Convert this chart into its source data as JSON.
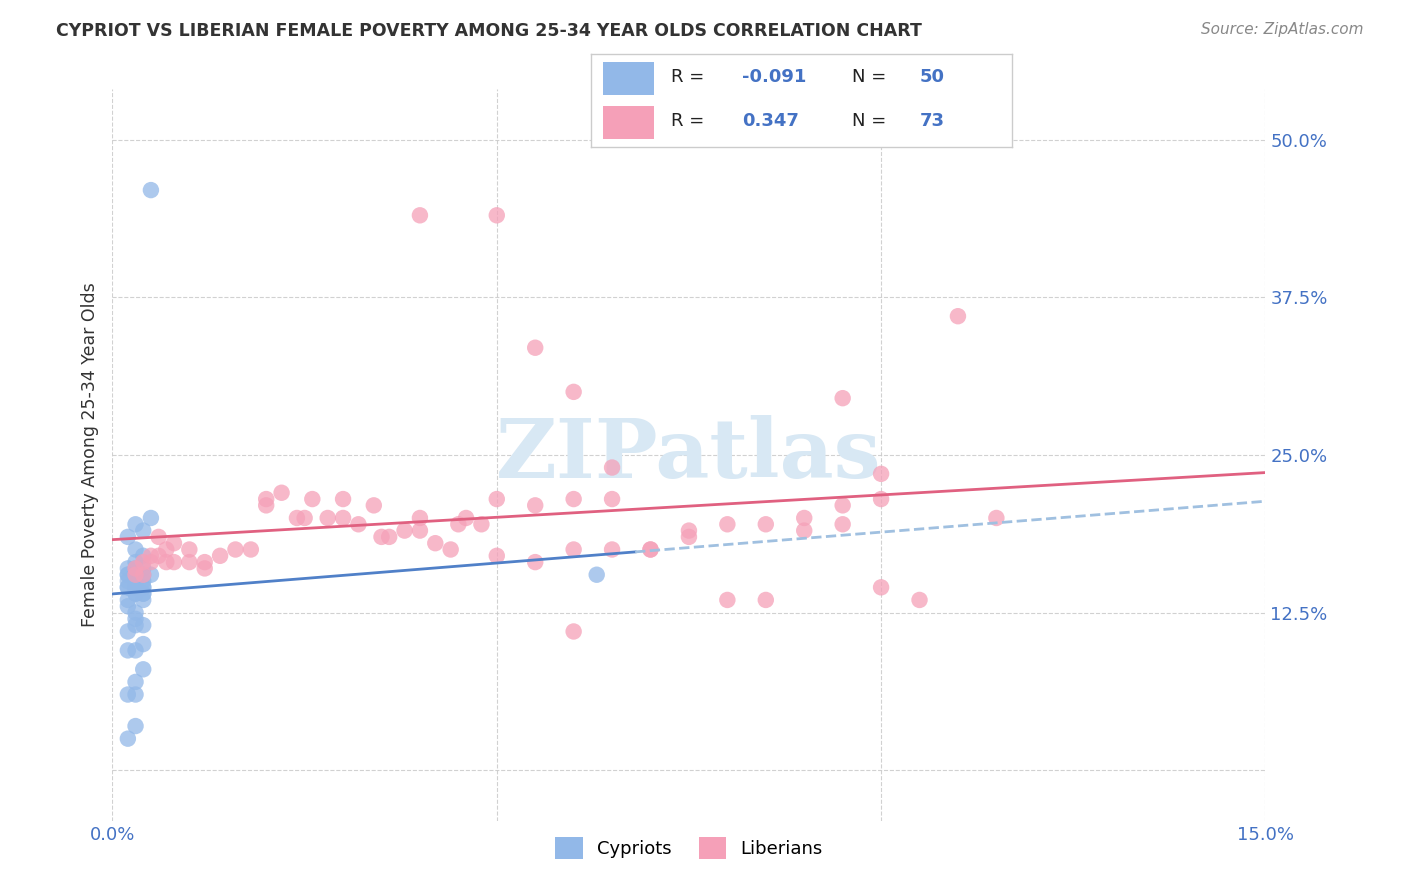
{
  "title": "CYPRIOT VS LIBERIAN FEMALE POVERTY AMONG 25-34 YEAR OLDS CORRELATION CHART",
  "source": "Source: ZipAtlas.com",
  "ylabel": "Female Poverty Among 25-34 Year Olds",
  "cypriot_color": "#92b8e8",
  "liberian_color": "#f5a0b8",
  "line_cypriot_solid": "#5080c8",
  "line_cypriot_dash": "#a0c0e0",
  "line_liberian": "#e06080",
  "watermark_color": "#d8e8f4",
  "xlim": [
    0.0,
    0.15
  ],
  "ylim": [
    -0.04,
    0.54
  ],
  "cypriot_x": [
    0.003,
    0.004,
    0.002,
    0.003,
    0.004,
    0.003,
    0.002,
    0.004,
    0.003,
    0.005,
    0.002,
    0.003,
    0.004,
    0.003,
    0.002,
    0.003,
    0.004,
    0.002,
    0.003,
    0.004,
    0.003,
    0.002,
    0.004,
    0.003,
    0.002,
    0.003,
    0.004,
    0.003,
    0.005,
    0.004,
    0.003,
    0.002,
    0.004,
    0.003,
    0.002,
    0.003,
    0.004,
    0.003,
    0.002,
    0.004,
    0.003,
    0.002,
    0.004,
    0.003,
    0.002,
    0.003,
    0.005,
    0.063,
    0.003,
    0.002
  ],
  "cypriot_y": [
    0.195,
    0.19,
    0.185,
    0.175,
    0.17,
    0.165,
    0.16,
    0.155,
    0.15,
    0.2,
    0.145,
    0.14,
    0.135,
    0.16,
    0.155,
    0.155,
    0.15,
    0.145,
    0.145,
    0.16,
    0.155,
    0.155,
    0.145,
    0.155,
    0.15,
    0.145,
    0.14,
    0.15,
    0.155,
    0.145,
    0.14,
    0.135,
    0.14,
    0.125,
    0.13,
    0.12,
    0.115,
    0.115,
    0.11,
    0.1,
    0.095,
    0.095,
    0.08,
    0.07,
    0.06,
    0.06,
    0.46,
    0.155,
    0.035,
    0.025
  ],
  "liberian_x": [
    0.003,
    0.004,
    0.005,
    0.006,
    0.007,
    0.008,
    0.01,
    0.012,
    0.014,
    0.016,
    0.018,
    0.02,
    0.022,
    0.024,
    0.026,
    0.028,
    0.03,
    0.032,
    0.034,
    0.036,
    0.038,
    0.04,
    0.042,
    0.044,
    0.046,
    0.048,
    0.05,
    0.055,
    0.06,
    0.065,
    0.07,
    0.075,
    0.08,
    0.085,
    0.09,
    0.095,
    0.1,
    0.105,
    0.11,
    0.115,
    0.003,
    0.004,
    0.005,
    0.006,
    0.007,
    0.008,
    0.01,
    0.012,
    0.02,
    0.025,
    0.03,
    0.035,
    0.04,
    0.045,
    0.05,
    0.055,
    0.06,
    0.065,
    0.07,
    0.075,
    0.08,
    0.085,
    0.09,
    0.095,
    0.1,
    0.055,
    0.06,
    0.065,
    0.095,
    0.1,
    0.04,
    0.05,
    0.06
  ],
  "liberian_y": [
    0.16,
    0.155,
    0.165,
    0.17,
    0.175,
    0.165,
    0.175,
    0.165,
    0.17,
    0.175,
    0.175,
    0.215,
    0.22,
    0.2,
    0.215,
    0.2,
    0.2,
    0.195,
    0.21,
    0.185,
    0.19,
    0.19,
    0.18,
    0.175,
    0.2,
    0.195,
    0.17,
    0.165,
    0.175,
    0.175,
    0.175,
    0.185,
    0.135,
    0.135,
    0.2,
    0.195,
    0.145,
    0.135,
    0.36,
    0.2,
    0.155,
    0.165,
    0.17,
    0.185,
    0.165,
    0.18,
    0.165,
    0.16,
    0.21,
    0.2,
    0.215,
    0.185,
    0.2,
    0.195,
    0.215,
    0.21,
    0.215,
    0.215,
    0.175,
    0.19,
    0.195,
    0.195,
    0.19,
    0.21,
    0.215,
    0.335,
    0.3,
    0.24,
    0.295,
    0.235,
    0.44,
    0.44,
    0.11
  ]
}
